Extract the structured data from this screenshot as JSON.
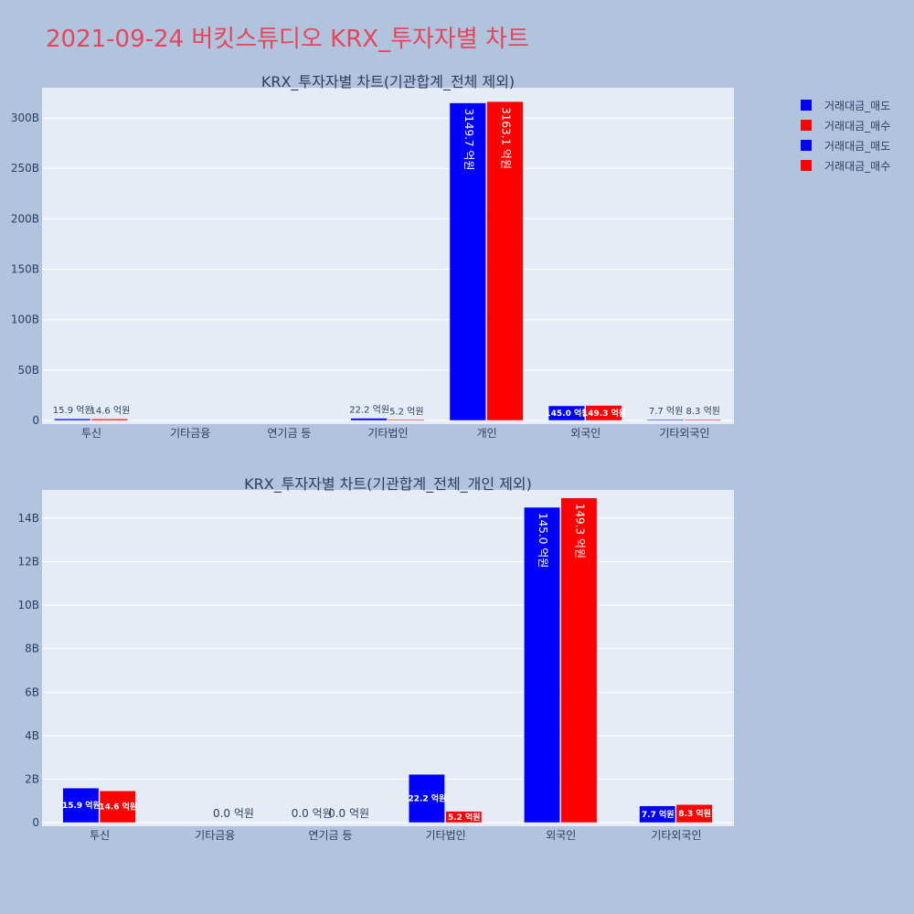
{
  "page": {
    "title": "2021-09-24 버킷스튜디오 KRX_투자자별 차트",
    "title_color": "#e8445a",
    "background": "#b0c4de",
    "plot_background": "#e5ecf6"
  },
  "legend": {
    "placement": "top-right",
    "items": [
      {
        "label": "거래대금_매도",
        "color": "#0000ff"
      },
      {
        "label": "거래대금_매수",
        "color": "#ff0000"
      },
      {
        "label": "거래대금_매도",
        "color": "#0000ff"
      },
      {
        "label": "거래대금_매수",
        "color": "#ff0000"
      }
    ]
  },
  "chart_data": [
    {
      "type": "bar",
      "title": "KRX_투자자별 차트(기관합계_전체 제외)",
      "categories": [
        "투신",
        "기타금융",
        "연기금 등",
        "기타법인",
        "개인",
        "외국인",
        "기타외국인"
      ],
      "ylim": [
        0,
        330
      ],
      "yticks": [
        0,
        50,
        100,
        150,
        200,
        250,
        300
      ],
      "ytick_labels": [
        "0",
        "50B",
        "100B",
        "150B",
        "200B",
        "250B",
        "300B"
      ],
      "grid": true,
      "series": [
        {
          "name": "거래대금_매도",
          "color": "#0000ff",
          "values": [
            1.59,
            null,
            null,
            2.22,
            314.97,
            14.5,
            0.77
          ],
          "labels": [
            "15.9 억원",
            "",
            "",
            "22.2 억원",
            "3149.7 억원",
            "145.0 억원",
            "7.7 억원"
          ]
        },
        {
          "name": "거래대금_매수",
          "color": "#ff0000",
          "values": [
            1.46,
            null,
            null,
            0.52,
            316.31,
            14.93,
            0.83
          ],
          "labels": [
            "14.6 억원",
            "",
            "",
            "5.2 억원",
            "3163.1 억원",
            "149.3 억원",
            "8.3 억원"
          ]
        }
      ]
    },
    {
      "type": "bar",
      "title": "KRX_투자자별 차트(기관합계_전체_개인 제외)",
      "categories": [
        "투신",
        "기타금융",
        "연기금 등",
        "기타법인",
        "외국인",
        "기타외국인"
      ],
      "ylim": [
        0,
        15.3
      ],
      "yticks": [
        0,
        2,
        4,
        6,
        8,
        10,
        12,
        14
      ],
      "ytick_labels": [
        "0",
        "2B",
        "4B",
        "6B",
        "8B",
        "10B",
        "12B",
        "14B"
      ],
      "grid": true,
      "series": [
        {
          "name": "거래대금_매도",
          "color": "#0000ff",
          "values": [
            1.59,
            null,
            0,
            2.22,
            14.5,
            0.77
          ],
          "labels": [
            "15.9 억원",
            "",
            "0.0 억원",
            "22.2 억원",
            "145.0 억원",
            "7.7 억원"
          ]
        },
        {
          "name": "거래대금_매수",
          "color": "#ff0000",
          "values": [
            1.46,
            0,
            0,
            0.52,
            14.93,
            0.83
          ],
          "labels": [
            "14.6 억원",
            "0.0 억원",
            "0.0 억원",
            "5.2 억원",
            "149.3 억원",
            "8.3 억원"
          ]
        }
      ]
    }
  ]
}
